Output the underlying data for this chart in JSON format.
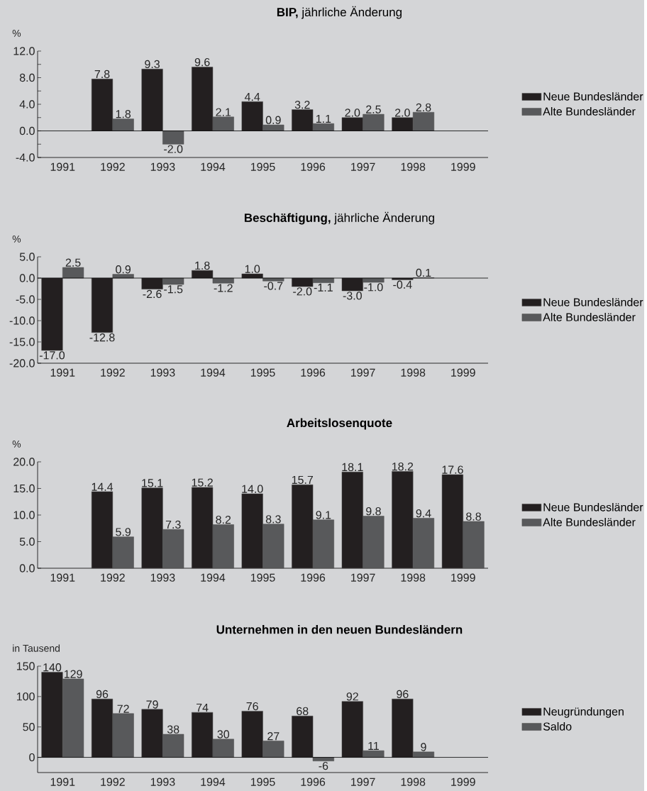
{
  "chart_data": [
    {
      "type": "bar",
      "title": "**BIP,** jährliche Änderung",
      "ylabel": "%",
      "categories": [
        "1991",
        "1992",
        "1993",
        "1994",
        "1995",
        "1996",
        "1997",
        "1998",
        "1999"
      ],
      "series": [
        {
          "name": "Neue Bundesländer",
          "color": "#231f20",
          "values": [
            null,
            7.8,
            9.3,
            9.6,
            4.4,
            3.2,
            2.0,
            2.0,
            null
          ],
          "value_labels": [
            null,
            "7.8",
            "9.3",
            "9.6",
            "4.4",
            "3.2",
            "2.0",
            "2.0",
            null
          ]
        },
        {
          "name": "Alte Bundesländer",
          "color": "#58595b",
          "values": [
            null,
            1.8,
            -2.0,
            2.1,
            0.9,
            1.1,
            2.5,
            2.8,
            null
          ],
          "value_labels": [
            null,
            "1.8",
            "-2.0",
            "2.1",
            "0.9",
            "1.1",
            "2.5",
            "2.8",
            null
          ]
        }
      ],
      "ylim": [
        -4,
        12
      ],
      "yticks": [
        {
          "value": -4,
          "label": "-4.0"
        },
        {
          "value": -2,
          "label": null
        },
        {
          "value": 0,
          "label": "0.0"
        },
        {
          "value": 2,
          "label": null
        },
        {
          "value": 4,
          "label": "4.0"
        },
        {
          "value": 6,
          "label": null
        },
        {
          "value": 8,
          "label": "8.0"
        },
        {
          "value": 10,
          "label": null
        },
        {
          "value": 12,
          "label": "12.0"
        }
      ],
      "legend": "right"
    },
    {
      "type": "bar",
      "title": "**Beschäftigung,** jährliche Änderung",
      "ylabel": "%",
      "categories": [
        "1991",
        "1992",
        "1993",
        "1994",
        "1995",
        "1996",
        "1997",
        "1998",
        "1999"
      ],
      "series": [
        {
          "name": "Neue Bundesländer",
          "color": "#231f20",
          "values": [
            -17.0,
            -12.8,
            -2.6,
            1.8,
            1.0,
            -2.0,
            -3.0,
            -0.4,
            null
          ],
          "value_labels": [
            "-17.0",
            "-12.8",
            "-2.6",
            "1.8",
            "1.0",
            "-2.0",
            "-3.0",
            "-0.4",
            null
          ]
        },
        {
          "name": "Alte Bundesländer",
          "color": "#58595b",
          "values": [
            2.5,
            0.9,
            -1.5,
            -1.2,
            -0.7,
            -1.1,
            -1.0,
            0.1,
            null
          ],
          "value_labels": [
            "2.5",
            "0.9",
            "-1.5",
            "-1.2",
            "-0.7",
            "-1.1",
            "-1.0",
            "0.1",
            null
          ]
        }
      ],
      "ylim": [
        -20,
        5
      ],
      "yticks": [
        {
          "value": -20,
          "label": "-20.0"
        },
        {
          "value": -15,
          "label": "-15.0"
        },
        {
          "value": -10,
          "label": "-10.0"
        },
        {
          "value": -5,
          "label": "-5.0"
        },
        {
          "value": 0,
          "label": "0.0"
        },
        {
          "value": 5,
          "label": "5.0"
        }
      ],
      "legend": "right"
    },
    {
      "type": "bar",
      "title": "**Arbeitslosenquote**",
      "ylabel": "%",
      "categories": [
        "1991",
        "1992",
        "1993",
        "1994",
        "1995",
        "1996",
        "1997",
        "1998",
        "1999"
      ],
      "series": [
        {
          "name": "Neue Bundesländer",
          "color": "#231f20",
          "values": [
            null,
            14.4,
            15.1,
            15.2,
            14.0,
            15.7,
            18.1,
            18.2,
            17.6
          ],
          "value_labels": [
            null,
            "14.4",
            "15.1",
            "15.2",
            "14.0",
            "15.7",
            "18.1",
            "18.2",
            "17.6"
          ]
        },
        {
          "name": "Alte Bundesländer",
          "color": "#58595b",
          "values": [
            null,
            5.9,
            7.3,
            8.2,
            8.3,
            9.1,
            9.8,
            9.4,
            8.8
          ],
          "value_labels": [
            null,
            "5.9",
            "7.3",
            "8.2",
            "8.3",
            "9.1",
            "9.8",
            "9.4",
            "8.8"
          ]
        }
      ],
      "ylim": [
        0,
        20
      ],
      "yticks": [
        {
          "value": 0,
          "label": "0.0"
        },
        {
          "value": 5,
          "label": "5.0"
        },
        {
          "value": 10,
          "label": "10.0"
        },
        {
          "value": 15,
          "label": "15.0"
        },
        {
          "value": 20,
          "label": "20.0"
        }
      ],
      "legend": "right"
    },
    {
      "type": "bar",
      "title": "**Unternehmen in den neuen Bundesländern**",
      "ylabel": "in Tausend",
      "categories": [
        "1991",
        "1992",
        "1993",
        "1994",
        "1995",
        "1996",
        "1997",
        "1998",
        "1999"
      ],
      "series": [
        {
          "name": "Neugründungen",
          "color": "#231f20",
          "values": [
            140,
            96,
            79,
            74,
            76,
            68,
            92,
            96,
            null
          ],
          "value_labels": [
            "140",
            "96",
            "79",
            "74",
            "76",
            "68",
            "92",
            "96",
            null
          ]
        },
        {
          "name": "Saldo",
          "color": "#58595b",
          "values": [
            129,
            72,
            38,
            30,
            27,
            -6,
            11,
            9,
            null
          ],
          "value_labels": [
            "129",
            "72",
            "38",
            "30",
            "27",
            "-6",
            "11",
            "9",
            null
          ]
        }
      ],
      "ylim": [
        -25,
        150
      ],
      "yticks": [
        0,
        50,
        100,
        150
      ],
      "legend": "right"
    }
  ]
}
